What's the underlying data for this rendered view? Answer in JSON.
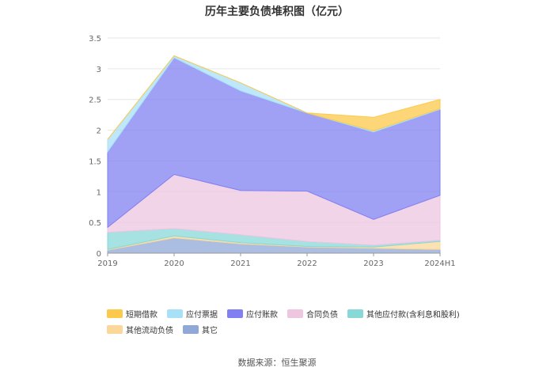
{
  "chart_data": {
    "type": "area",
    "title": "历年主要负债堆积图（亿元）",
    "categories": [
      "2019",
      "2020",
      "2021",
      "2022",
      "2023",
      "2024H1"
    ],
    "ylim": [
      0,
      3.5
    ],
    "yticks": [
      "0",
      "0.5",
      "1",
      "1.5",
      "2",
      "2.5",
      "3",
      "3.5"
    ],
    "stacked": true,
    "grid": true,
    "legend_position": "bottom",
    "series": [
      {
        "name": "其它",
        "color": "#8fa8d8",
        "values": [
          0.05,
          0.25,
          0.15,
          0.1,
          0.08,
          0.06
        ]
      },
      {
        "name": "其他流动负债",
        "color": "#fbd89a",
        "values": [
          0.01,
          0.03,
          0.02,
          0.01,
          0.02,
          0.13
        ]
      },
      {
        "name": "其他应付款(含利息和股利)",
        "color": "#88d8d8",
        "values": [
          0.28,
          0.12,
          0.13,
          0.08,
          0.03,
          0.02
        ]
      },
      {
        "name": "合同负债",
        "color": "#eec6e0",
        "values": [
          0.08,
          0.88,
          0.72,
          0.82,
          0.42,
          0.73
        ]
      },
      {
        "name": "应付账款",
        "color": "#8080f2",
        "values": [
          1.23,
          1.9,
          1.62,
          1.27,
          1.42,
          1.4
        ]
      },
      {
        "name": "应付票据",
        "color": "#a8e0f8",
        "values": [
          0.2,
          0.03,
          0.13,
          0.0,
          0.02,
          0.01
        ]
      },
      {
        "name": "短期借款",
        "color": "#fcc94a",
        "values": [
          0.0,
          0.0,
          0.0,
          0.0,
          0.22,
          0.15
        ]
      }
    ],
    "legend": [
      "短期借款",
      "应付票据",
      "应付账款",
      "合同负债",
      "其他应付款(含利息和股利)",
      "其他流动负债",
      "其它"
    ]
  },
  "source": "数据来源：恒生聚源"
}
